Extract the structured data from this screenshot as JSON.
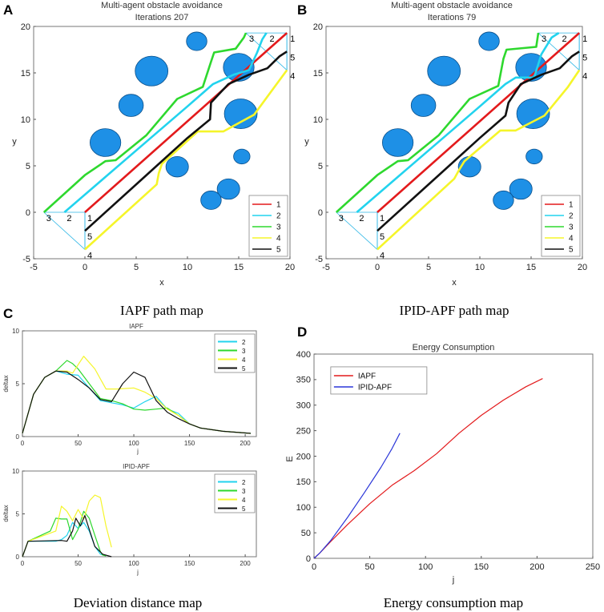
{
  "panels": {
    "A": "A",
    "B": "B",
    "C": "C",
    "D": "D"
  },
  "captions": {
    "A": "IAPF path map",
    "B": "IPID-APF path map",
    "C": "Deviation distance map",
    "D": "Energy consumption map"
  },
  "colors": {
    "1": "#e31a1c",
    "2": "#22d3ee",
    "3": "#2ed82e",
    "4": "#f5f52a",
    "5": "#111111",
    "obstacle": "#1e90e6",
    "obstacle_edge": "#0a4f8a"
  },
  "chart_data": [
    {
      "id": "A",
      "type": "line",
      "title": "Multi-agent obstacle avoidance",
      "subtitle": "Iterations 207",
      "xlabel": "x",
      "ylabel": "y",
      "xlim": [
        -5,
        20
      ],
      "ylim": [
        -5,
        20
      ],
      "xticks": [
        -5,
        0,
        5,
        10,
        15,
        20
      ],
      "yticks": [
        -5,
        0,
        5,
        10,
        15,
        20
      ],
      "legend": [
        "1",
        "2",
        "3",
        "4",
        "5"
      ],
      "obstacles": [
        {
          "x": 14,
          "y": 2.5,
          "r": 1.1
        },
        {
          "x": 12.3,
          "y": 1.3,
          "r": 1.0
        },
        {
          "x": 9,
          "y": 4.9,
          "r": 1.1
        },
        {
          "x": 15.3,
          "y": 6,
          "r": 0.8
        },
        {
          "x": 2,
          "y": 7.5,
          "r": 1.5
        },
        {
          "x": 4.5,
          "y": 11.5,
          "r": 1.2
        },
        {
          "x": 6.5,
          "y": 15.2,
          "r": 1.6
        },
        {
          "x": 10.9,
          "y": 18.4,
          "r": 1.0
        },
        {
          "x": 15,
          "y": 15.6,
          "r": 1.5
        },
        {
          "x": 15.2,
          "y": 10.6,
          "r": 1.6
        }
      ],
      "start_labels": [
        {
          "id": "1",
          "x": 0,
          "y": 0
        },
        {
          "id": "2",
          "x": -2,
          "y": 0
        },
        {
          "id": "3",
          "x": -4,
          "y": 0
        },
        {
          "id": "4",
          "x": 0,
          "y": -4
        },
        {
          "id": "5",
          "x": 0,
          "y": -2
        }
      ],
      "goal_labels": [
        {
          "id": "1",
          "x": 19.7,
          "y": 19.3
        },
        {
          "id": "2",
          "x": 17.7,
          "y": 19.3
        },
        {
          "id": "3",
          "x": 15.7,
          "y": 19.3
        },
        {
          "id": "4",
          "x": 19.7,
          "y": 15.3
        },
        {
          "id": "5",
          "x": 19.7,
          "y": 17.3
        }
      ],
      "series": [
        {
          "name": "1",
          "x": [
            0,
            19.7
          ],
          "y": [
            0,
            19.3
          ]
        },
        {
          "name": "2",
          "x": [
            -2,
            2,
            6,
            10,
            12.5,
            14.5,
            16,
            16.8,
            17.3,
            17.7
          ],
          "y": [
            0,
            3.8,
            7.6,
            11.4,
            13.8,
            14.8,
            15.3,
            17.2,
            18.6,
            19.3
          ]
        },
        {
          "name": "3",
          "x": [
            -4,
            0,
            2,
            3,
            6,
            9,
            11.5,
            12.3,
            12.6,
            14.7,
            15.5,
            15.7
          ],
          "y": [
            0,
            4,
            5.5,
            5.6,
            8.3,
            12.2,
            13.5,
            16.2,
            17.2,
            17.6,
            18.8,
            19.3
          ]
        },
        {
          "name": "4",
          "x": [
            0,
            7,
            7.2,
            7.5,
            11,
            13.5,
            16.5,
            18.5,
            19.7
          ],
          "y": [
            -4,
            3,
            4.2,
            5.2,
            8.7,
            8.7,
            10.5,
            13.5,
            15.3
          ]
        },
        {
          "name": "5",
          "x": [
            0,
            6,
            10,
            12.2,
            12.3,
            14,
            16,
            17.8,
            19,
            19.7
          ],
          "y": [
            -2,
            4,
            8,
            10,
            11.8,
            13.8,
            14.8,
            15.5,
            16.8,
            17.3
          ]
        }
      ]
    },
    {
      "id": "B",
      "type": "line",
      "title": "Multi-agent obstacle avoidance",
      "subtitle": "Iterations 79",
      "xlabel": "x",
      "ylabel": "y",
      "xlim": [
        -5,
        20
      ],
      "ylim": [
        -5,
        20
      ],
      "xticks": [
        -5,
        0,
        5,
        10,
        15,
        20
      ],
      "yticks": [
        -5,
        0,
        5,
        10,
        15,
        20
      ],
      "legend": [
        "1",
        "2",
        "3",
        "4",
        "5"
      ],
      "obstacles": [
        {
          "x": 14,
          "y": 2.5,
          "r": 1.1
        },
        {
          "x": 12.3,
          "y": 1.3,
          "r": 1.0
        },
        {
          "x": 9,
          "y": 4.9,
          "r": 1.1
        },
        {
          "x": 15.3,
          "y": 6,
          "r": 0.8
        },
        {
          "x": 2,
          "y": 7.5,
          "r": 1.5
        },
        {
          "x": 4.5,
          "y": 11.5,
          "r": 1.2
        },
        {
          "x": 6.5,
          "y": 15.2,
          "r": 1.6
        },
        {
          "x": 10.9,
          "y": 18.4,
          "r": 1.0
        },
        {
          "x": 15,
          "y": 15.6,
          "r": 1.5
        },
        {
          "x": 15.2,
          "y": 10.6,
          "r": 1.6
        }
      ],
      "start_labels": [
        {
          "id": "1",
          "x": 0,
          "y": 0
        },
        {
          "id": "2",
          "x": -2,
          "y": 0
        },
        {
          "id": "3",
          "x": -4,
          "y": 0
        },
        {
          "id": "4",
          "x": 0,
          "y": -4
        },
        {
          "id": "5",
          "x": 0,
          "y": -2
        }
      ],
      "goal_labels": [
        {
          "id": "1",
          "x": 19.7,
          "y": 19.3
        },
        {
          "id": "2",
          "x": 17.7,
          "y": 19.3
        },
        {
          "id": "3",
          "x": 15.7,
          "y": 19.3
        },
        {
          "id": "4",
          "x": 19.7,
          "y": 15.3
        },
        {
          "id": "5",
          "x": 19.7,
          "y": 17.3
        }
      ],
      "series": [
        {
          "name": "1",
          "x": [
            0,
            19.7
          ],
          "y": [
            0,
            19.3
          ]
        },
        {
          "name": "2",
          "x": [
            -2,
            2,
            6,
            10,
            12.5,
            13.5,
            15.3,
            16,
            17,
            17.7
          ],
          "y": [
            0,
            3.8,
            7.6,
            11.4,
            13.8,
            14.5,
            14.5,
            17,
            18.8,
            19.3
          ]
        },
        {
          "name": "3",
          "x": [
            -4,
            0,
            2,
            3,
            6,
            9,
            11.8,
            12.3,
            12.6,
            15.5,
            15.7
          ],
          "y": [
            0,
            4,
            5.5,
            5.6,
            8.3,
            12.2,
            13.6,
            16.5,
            17.5,
            17.8,
            19.3
          ]
        },
        {
          "name": "4",
          "x": [
            0,
            7.5,
            8,
            8.5,
            12,
            13.5,
            16.3,
            18.6,
            19.7
          ],
          "y": [
            -4,
            3.6,
            4.6,
            5.5,
            8.8,
            8.8,
            10.4,
            13.5,
            15.3
          ]
        },
        {
          "name": "5",
          "x": [
            0,
            6,
            10,
            12.5,
            12.8,
            14,
            16,
            17.8,
            19,
            19.7
          ],
          "y": [
            -2,
            4,
            8,
            10.4,
            11.8,
            13.8,
            14.8,
            15.5,
            16.8,
            17.3
          ]
        }
      ]
    },
    {
      "id": "C1",
      "type": "line",
      "title": "IAPF",
      "xlabel": "j",
      "ylabel": "deltax",
      "xlim": [
        0,
        210
      ],
      "ylim": [
        0,
        10
      ],
      "xticks": [
        0,
        50,
        100,
        150,
        200
      ],
      "yticks": [
        0,
        5,
        10
      ],
      "legend": [
        "2",
        "3",
        "4",
        "5"
      ],
      "series": [
        {
          "name": "2",
          "x": [
            0,
            10,
            20,
            30,
            40,
            50,
            60,
            70,
            80,
            90,
            100,
            110,
            120,
            130,
            140,
            150,
            160,
            180,
            205
          ],
          "y": [
            0.3,
            4,
            5.6,
            6.2,
            5.9,
            5.8,
            4.6,
            3.4,
            3.2,
            3,
            2.7,
            3.3,
            3.8,
            2.6,
            2.2,
            1.2,
            0.8,
            0.5,
            0.3
          ]
        },
        {
          "name": "3",
          "x": [
            0,
            10,
            20,
            30,
            40,
            45,
            50,
            60,
            70,
            80,
            90,
            100,
            110,
            120,
            130,
            140,
            150,
            160,
            180,
            205
          ],
          "y": [
            0.3,
            4,
            5.6,
            6.2,
            7.2,
            6.9,
            6.4,
            5,
            3.6,
            3.4,
            3.1,
            2.6,
            2.5,
            2.6,
            2.7,
            2,
            1.2,
            0.8,
            0.5,
            0.3
          ]
        },
        {
          "name": "4",
          "x": [
            0,
            10,
            20,
            30,
            40,
            45,
            55,
            65,
            75,
            85,
            100,
            110,
            120,
            130,
            140,
            150,
            160,
            180,
            205
          ],
          "y": [
            0.3,
            4,
            5.6,
            6.2,
            6.2,
            6,
            7.6,
            6.4,
            4.5,
            4.5,
            4.6,
            4.2,
            3.6,
            2.6,
            2,
            1.2,
            0.8,
            0.5,
            0.3
          ]
        },
        {
          "name": "5",
          "x": [
            0,
            10,
            20,
            30,
            40,
            50,
            60,
            70,
            80,
            90,
            100,
            110,
            120,
            130,
            140,
            150,
            160,
            180,
            205
          ],
          "y": [
            0.3,
            4,
            5.6,
            6.2,
            6.1,
            5.4,
            4.6,
            3.5,
            3.3,
            5,
            6.1,
            5.6,
            3.4,
            2.3,
            1.7,
            1.2,
            0.8,
            0.5,
            0.3
          ]
        }
      ]
    },
    {
      "id": "C2",
      "type": "line",
      "title": "IPID-APF",
      "xlabel": "j",
      "ylabel": "deltax",
      "xlim": [
        0,
        210
      ],
      "ylim": [
        0,
        10
      ],
      "xticks": [
        0,
        50,
        100,
        150,
        200
      ],
      "yticks": [
        0,
        5,
        10
      ],
      "legend": [
        "2",
        "3",
        "4",
        "5"
      ],
      "series": [
        {
          "name": "2",
          "x": [
            0,
            5,
            30,
            35,
            40,
            45,
            50,
            55,
            60,
            65,
            70,
            75
          ],
          "y": [
            0,
            1.8,
            1.8,
            2,
            2.5,
            4,
            3.3,
            4,
            3,
            1.2,
            0.3,
            0.1
          ]
        },
        {
          "name": "3",
          "x": [
            0,
            5,
            25,
            30,
            35,
            40,
            45,
            50,
            55,
            60,
            65,
            70,
            72,
            75
          ],
          "y": [
            0,
            1.8,
            3,
            4.5,
            4.4,
            4.4,
            2,
            3.2,
            5.3,
            4.5,
            2.5,
            0.6,
            0.2,
            0.1
          ]
        },
        {
          "name": "4",
          "x": [
            0,
            5,
            30,
            35,
            40,
            45,
            50,
            55,
            60,
            65,
            70,
            75,
            80
          ],
          "y": [
            0,
            1.8,
            3,
            5.9,
            5.3,
            4.2,
            5.5,
            4.4,
            6.5,
            7.2,
            6.9,
            3.6,
            1.1
          ]
        },
        {
          "name": "5",
          "x": [
            0,
            5,
            35,
            40,
            45,
            48,
            52,
            56,
            60,
            65,
            72,
            80
          ],
          "y": [
            0,
            1.8,
            1.9,
            1.8,
            3,
            4.5,
            3.6,
            4.8,
            3.2,
            1.2,
            0.3,
            0
          ]
        }
      ]
    },
    {
      "id": "D",
      "type": "line",
      "title": "Energy Consumption",
      "xlabel": "j",
      "ylabel": "E",
      "xlim": [
        0,
        250
      ],
      "ylim": [
        0,
        400
      ],
      "xticks": [
        0,
        50,
        100,
        150,
        200,
        250
      ],
      "yticks": [
        0,
        50,
        100,
        150,
        200,
        250,
        300,
        350,
        400
      ],
      "legend": [
        "IAPF",
        "IPID-APF"
      ],
      "series": [
        {
          "name": "IAPF",
          "color": "#e31a1c",
          "x": [
            0,
            5,
            15,
            30,
            50,
            70,
            90,
            110,
            130,
            150,
            170,
            190,
            205
          ],
          "y": [
            0,
            10,
            33,
            66,
            107,
            143,
            172,
            205,
            245,
            280,
            310,
            336,
            352
          ]
        },
        {
          "name": "IPID-APF",
          "color": "#2a35d8",
          "x": [
            0,
            5,
            15,
            30,
            45,
            60,
            70,
            77
          ],
          "y": [
            0,
            10,
            35,
            80,
            128,
            178,
            215,
            245
          ]
        }
      ]
    }
  ]
}
